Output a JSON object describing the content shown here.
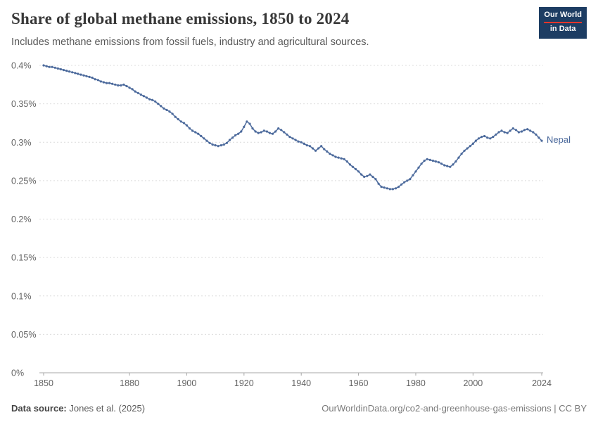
{
  "header": {
    "title": "Share of global methane emissions, 1850 to 2024",
    "subtitle": "Includes methane emissions from fossil fuels, industry and agricultural sources.",
    "logo": {
      "line1": "Our World",
      "line2": "in Data",
      "bg": "#1d3d63",
      "accent": "#e7352b"
    }
  },
  "footer": {
    "source_label": "Data source:",
    "source_value": " Jones et al. (2025)",
    "link": "OurWorldinData.org/co2-and-greenhouse-gas-emissions | CC BY"
  },
  "chart_data": {
    "type": "line",
    "title": "Share of global methane emissions, 1850 to 2024",
    "subtitle": "Includes methane emissions from fossil fuels, industry and agricultural sources.",
    "unit": "%",
    "xlabel": "",
    "ylabel": "",
    "xlim": [
      1850,
      2024
    ],
    "ylim": [
      0,
      0.4
    ],
    "x_ticks": [
      1850,
      1880,
      1900,
      1920,
      1940,
      1960,
      1980,
      2000,
      2024
    ],
    "y_ticks": [
      {
        "v": 0,
        "label": "0%"
      },
      {
        "v": 0.05,
        "label": "0.05%"
      },
      {
        "v": 0.1,
        "label": "0.1%"
      },
      {
        "v": 0.15,
        "label": "0.15%"
      },
      {
        "v": 0.2,
        "label": "0.2%"
      },
      {
        "v": 0.25,
        "label": "0.25%"
      },
      {
        "v": 0.3,
        "label": "0.3%"
      },
      {
        "v": 0.35,
        "label": "0.35%"
      },
      {
        "v": 0.4,
        "label": "0.4%"
      }
    ],
    "grid": "horizontal-dashed",
    "legend_position": "end-of-line-label",
    "marker": "circle",
    "series": [
      {
        "name": "Nepal",
        "color": "#4C6A9C",
        "x_start": 1850,
        "x_step": 1,
        "values": [
          0.4,
          0.399,
          0.398,
          0.398,
          0.397,
          0.396,
          0.395,
          0.394,
          0.393,
          0.392,
          0.391,
          0.39,
          0.389,
          0.388,
          0.387,
          0.386,
          0.385,
          0.384,
          0.382,
          0.381,
          0.379,
          0.378,
          0.377,
          0.377,
          0.376,
          0.375,
          0.374,
          0.374,
          0.375,
          0.373,
          0.371,
          0.369,
          0.366,
          0.364,
          0.362,
          0.36,
          0.358,
          0.356,
          0.355,
          0.353,
          0.35,
          0.347,
          0.344,
          0.342,
          0.34,
          0.337,
          0.333,
          0.33,
          0.327,
          0.325,
          0.322,
          0.318,
          0.315,
          0.313,
          0.311,
          0.308,
          0.305,
          0.302,
          0.299,
          0.297,
          0.296,
          0.295,
          0.296,
          0.297,
          0.299,
          0.303,
          0.306,
          0.309,
          0.311,
          0.314,
          0.32,
          0.327,
          0.324,
          0.318,
          0.314,
          0.312,
          0.313,
          0.315,
          0.314,
          0.312,
          0.311,
          0.314,
          0.318,
          0.316,
          0.313,
          0.31,
          0.307,
          0.305,
          0.303,
          0.301,
          0.3,
          0.298,
          0.296,
          0.295,
          0.292,
          0.289,
          0.292,
          0.295,
          0.291,
          0.288,
          0.285,
          0.283,
          0.281,
          0.28,
          0.279,
          0.278,
          0.275,
          0.271,
          0.268,
          0.265,
          0.262,
          0.258,
          0.255,
          0.256,
          0.258,
          0.255,
          0.252,
          0.246,
          0.242,
          0.241,
          0.24,
          0.239,
          0.239,
          0.24,
          0.242,
          0.245,
          0.248,
          0.25,
          0.252,
          0.257,
          0.262,
          0.267,
          0.272,
          0.276,
          0.278,
          0.277,
          0.276,
          0.275,
          0.274,
          0.272,
          0.27,
          0.269,
          0.268,
          0.271,
          0.275,
          0.28,
          0.285,
          0.289,
          0.292,
          0.295,
          0.298,
          0.302,
          0.305,
          0.307,
          0.308,
          0.306,
          0.305,
          0.307,
          0.31,
          0.313,
          0.315,
          0.313,
          0.312,
          0.315,
          0.318,
          0.316,
          0.313,
          0.314,
          0.316,
          0.317,
          0.315,
          0.313,
          0.31,
          0.306,
          0.302
        ]
      }
    ]
  }
}
